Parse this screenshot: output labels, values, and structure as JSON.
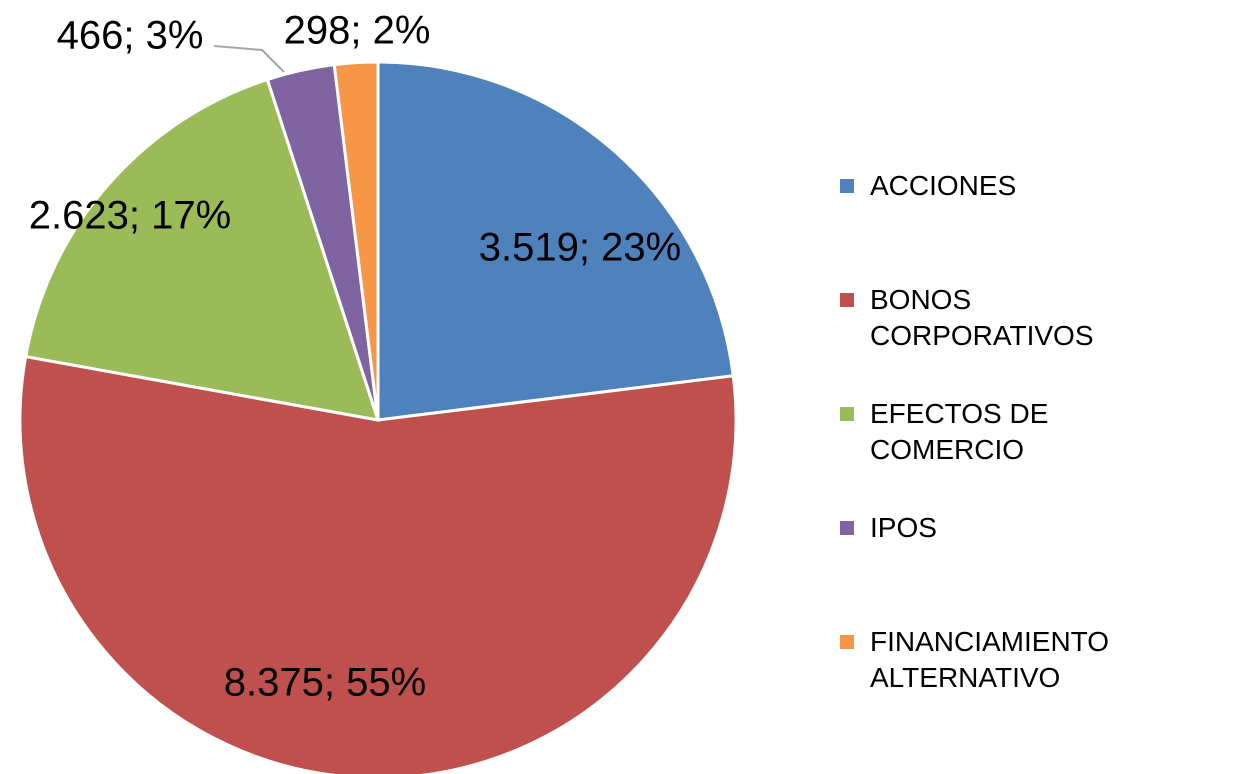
{
  "chart_data": {
    "type": "pie",
    "categories": [
      "ACCIONES",
      "BONOS CORPORATIVOS",
      "EFECTOS DE COMERCIO",
      "IPOS",
      "FINANCIAMIENTO ALTERNATIVO"
    ],
    "values": [
      3519,
      8375,
      2623,
      466,
      298
    ],
    "value_labels": [
      "3.519; 23%",
      "8.375; 55%",
      "2.623; 17%",
      "466; 3%",
      "298; 2%"
    ],
    "colors": [
      "#4f81bd",
      "#c0504d",
      "#9bbb59",
      "#8064a2",
      "#f79646"
    ],
    "legend": "right"
  }
}
